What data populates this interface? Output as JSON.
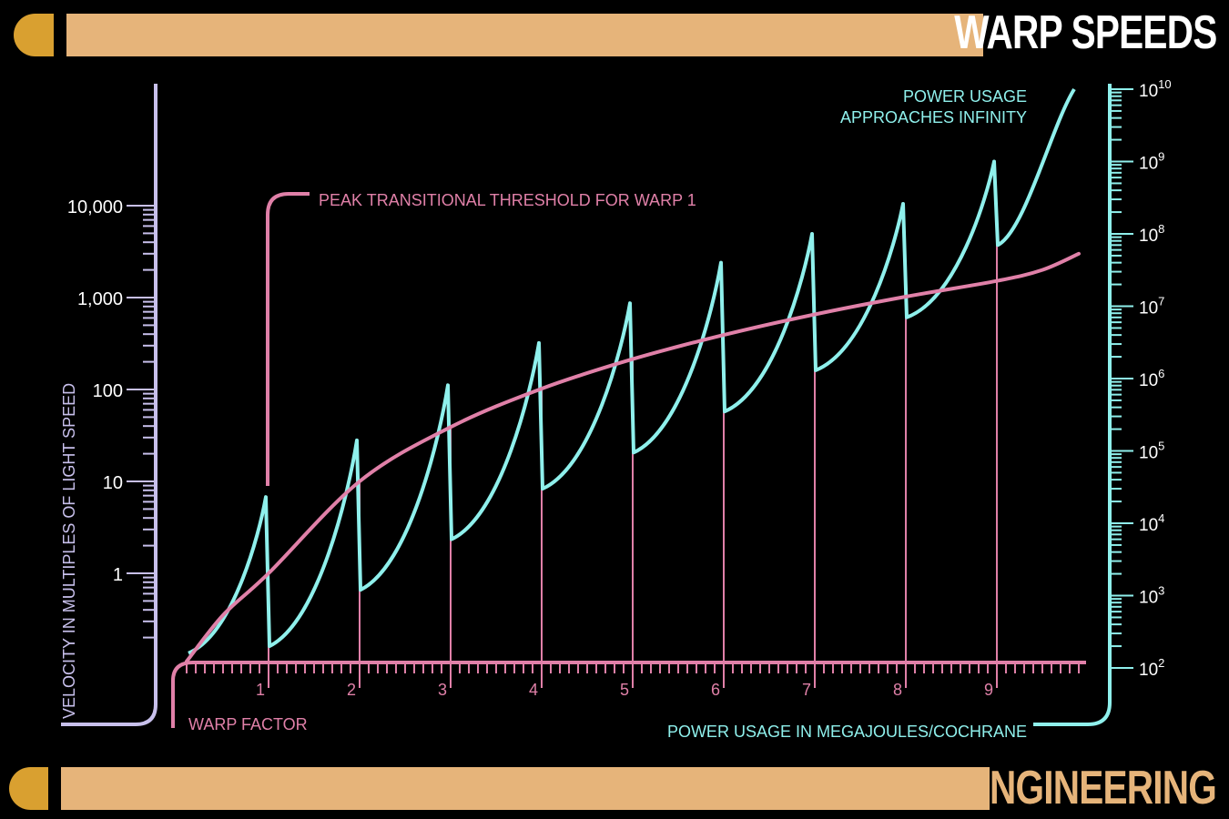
{
  "header": {
    "title": "WARP SPEEDS"
  },
  "footer": {
    "title": "ENGINEERING"
  },
  "colors": {
    "lcars_bar": "#e6b47a",
    "lcars_cap": "#d9a030",
    "velocity": "#e080a8",
    "power": "#8ff0ec",
    "left_axis": "#c8c0ec"
  },
  "chart_data": {
    "type": "line",
    "xlabel": "WARP FACTOR",
    "ylabel_left": "VELOCITY IN MULTIPLES OF LIGHT SPEED",
    "ylabel_right": "POWER USAGE IN MEGAJOULES/COCHRANE",
    "x_ticks": [
      "1",
      "2",
      "3",
      "4",
      "5",
      "6",
      "7",
      "8",
      "9"
    ],
    "xlim": [
      0,
      10
    ],
    "y_left_ticks": [
      "1",
      "10",
      "100",
      "1,000",
      "10,000"
    ],
    "y_left_scale": "log",
    "y_right_ticks": [
      {
        "base": "10",
        "exp": "2"
      },
      {
        "base": "10",
        "exp": "3"
      },
      {
        "base": "10",
        "exp": "4"
      },
      {
        "base": "10",
        "exp": "5"
      },
      {
        "base": "10",
        "exp": "6"
      },
      {
        "base": "10",
        "exp": "7"
      },
      {
        "base": "10",
        "exp": "8"
      },
      {
        "base": "10",
        "exp": "9"
      },
      {
        "base": "10",
        "exp": "10"
      }
    ],
    "y_right_scale": "log",
    "annotations": {
      "peak_threshold": "PEAK TRANSITIONAL THRESHOLD FOR WARP 1",
      "infinity_line1": "POWER USAGE",
      "infinity_line2": "APPROACHES INFINITY"
    },
    "series": [
      {
        "name": "velocity",
        "x": [
          0.1,
          0.5,
          1,
          2,
          3,
          4,
          5,
          6,
          7,
          8,
          9,
          9.5,
          9.9
        ],
        "y": [
          0.11,
          0.35,
          1,
          10,
          39,
          102,
          214,
          392,
          656,
          1024,
          1516,
          2000,
          3000
        ]
      },
      {
        "name": "power",
        "peaks": [
          {
            "warp": 1,
            "peak": 23000,
            "base": 200
          },
          {
            "warp": 2,
            "peak": 140000,
            "base": 1200
          },
          {
            "warp": 3,
            "peak": 810000,
            "base": 6000
          },
          {
            "warp": 4,
            "peak": 3100000,
            "base": 30000
          },
          {
            "warp": 5,
            "peak": 11000000,
            "base": 95000
          },
          {
            "warp": 6,
            "peak": 40000000,
            "base": 350000
          },
          {
            "warp": 7,
            "peak": 100000000,
            "base": 1300000
          },
          {
            "warp": 8,
            "peak": 260000000,
            "base": 7000000
          },
          {
            "warp": 9,
            "peak": 1000000000,
            "base": 70000000
          }
        ],
        "end_value": 10000000000
      }
    ]
  }
}
